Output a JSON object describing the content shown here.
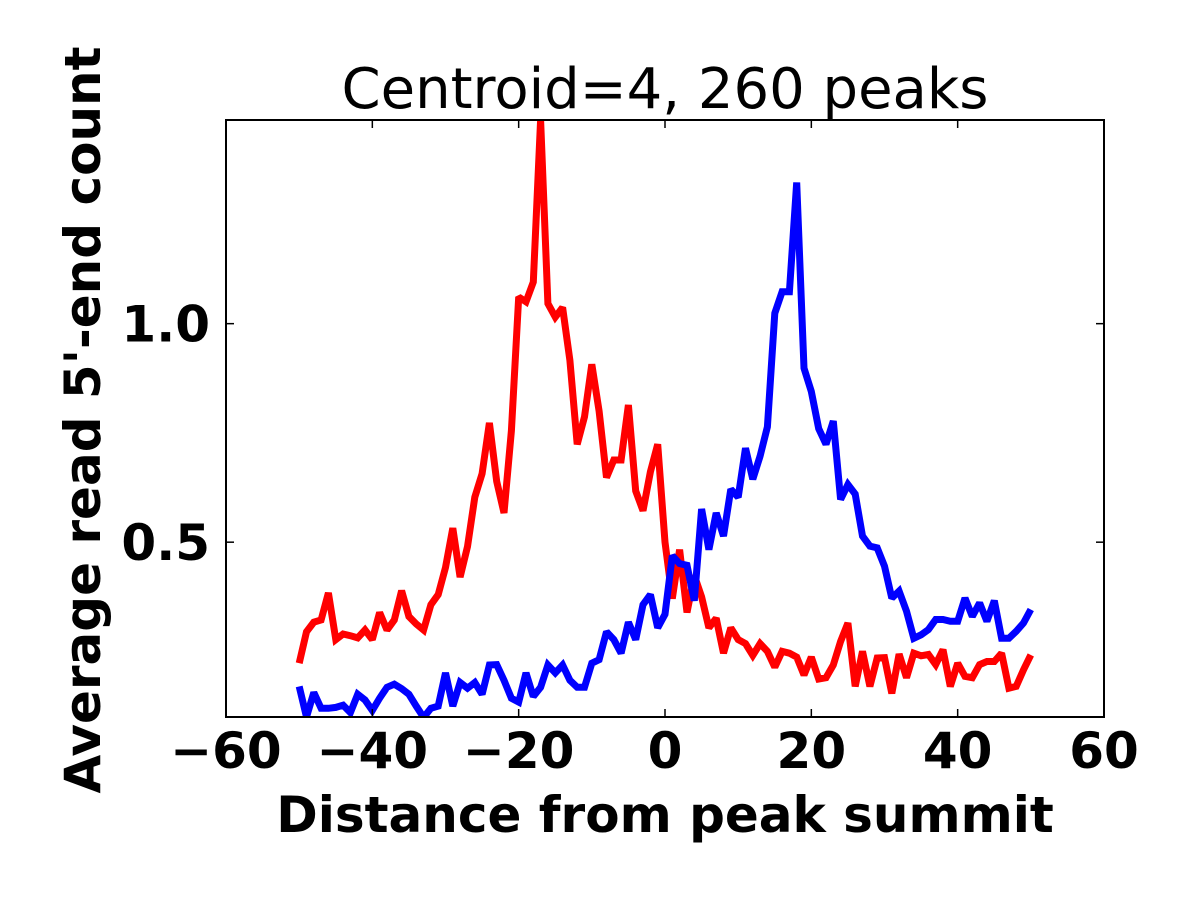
{
  "chart_data": {
    "type": "line",
    "title": "Centroid=4, 260 peaks",
    "xlabel": "Distance from peak summit",
    "ylabel": "Average read 5'-end count",
    "xlim": [
      -60,
      60
    ],
    "ylim": [
      0.1,
      1.466
    ],
    "xticks": [
      -60,
      -40,
      -20,
      0,
      20,
      40,
      60
    ],
    "xtick_labels": [
      "−60",
      "−40",
      "−20",
      "0",
      "20",
      "40",
      "60"
    ],
    "yticks": [
      0.5,
      1.0
    ],
    "ytick_labels": [
      "0.5",
      "1.0"
    ],
    "grid": false,
    "x_start": -50,
    "x_step": 1,
    "series": [
      {
        "name": "red",
        "color": "#ff0000",
        "values": [
          0.223,
          0.295,
          0.317,
          0.322,
          0.384,
          0.277,
          0.29,
          0.286,
          0.281,
          0.299,
          0.277,
          0.339,
          0.299,
          0.322,
          0.389,
          0.33,
          0.313,
          0.299,
          0.357,
          0.38,
          0.442,
          0.532,
          0.42,
          0.49,
          0.603,
          0.657,
          0.773,
          0.639,
          0.567,
          0.755,
          1.061,
          1.05,
          1.095,
          1.466,
          1.046,
          1.015,
          1.037,
          0.916,
          0.724,
          0.787,
          0.907,
          0.8,
          0.648,
          0.688,
          0.688,
          0.814,
          0.617,
          0.572,
          0.661,
          0.724,
          0.5,
          0.371,
          0.483,
          0.339,
          0.424,
          0.375,
          0.304,
          0.326,
          0.246,
          0.304,
          0.277,
          0.268,
          0.241,
          0.268,
          0.25,
          0.214,
          0.25,
          0.246,
          0.237,
          0.196,
          0.237,
          0.187,
          0.19,
          0.219,
          0.273,
          0.315,
          0.17,
          0.25,
          0.17,
          0.235,
          0.236,
          0.154,
          0.244,
          0.19,
          0.246,
          0.24,
          0.243,
          0.22,
          0.254,
          0.17,
          0.223,
          0.193,
          0.19,
          0.22,
          0.227,
          0.227,
          0.246,
          0.166,
          0.17,
          0.208,
          0.242
        ]
      },
      {
        "name": "blue",
        "color": "#0000ff",
        "values": [
          0.17,
          0.1,
          0.156,
          0.12,
          0.12,
          0.122,
          0.127,
          0.11,
          0.152,
          0.139,
          0.115,
          0.143,
          0.168,
          0.175,
          0.165,
          0.152,
          0.125,
          0.099,
          0.12,
          0.125,
          0.201,
          0.125,
          0.179,
          0.166,
          0.179,
          0.152,
          0.219,
          0.22,
          0.184,
          0.143,
          0.134,
          0.201,
          0.147,
          0.168,
          0.219,
          0.201,
          0.219,
          0.184,
          0.168,
          0.168,
          0.223,
          0.231,
          0.295,
          0.277,
          0.246,
          0.317,
          0.277,
          0.357,
          0.38,
          0.304,
          0.335,
          0.469,
          0.451,
          0.447,
          0.366,
          0.576,
          0.483,
          0.567,
          0.514,
          0.621,
          0.603,
          0.715,
          0.644,
          0.697,
          0.764,
          1.024,
          1.073,
          1.073,
          1.323,
          0.898,
          0.845,
          0.76,
          0.724,
          0.777,
          0.598,
          0.632,
          0.61,
          0.514,
          0.491,
          0.487,
          0.445,
          0.372,
          0.388,
          0.342,
          0.28,
          0.288,
          0.3,
          0.323,
          0.323,
          0.319,
          0.319,
          0.372,
          0.33,
          0.361,
          0.319,
          0.366,
          0.28,
          0.28,
          0.296,
          0.315,
          0.346
        ]
      }
    ]
  }
}
